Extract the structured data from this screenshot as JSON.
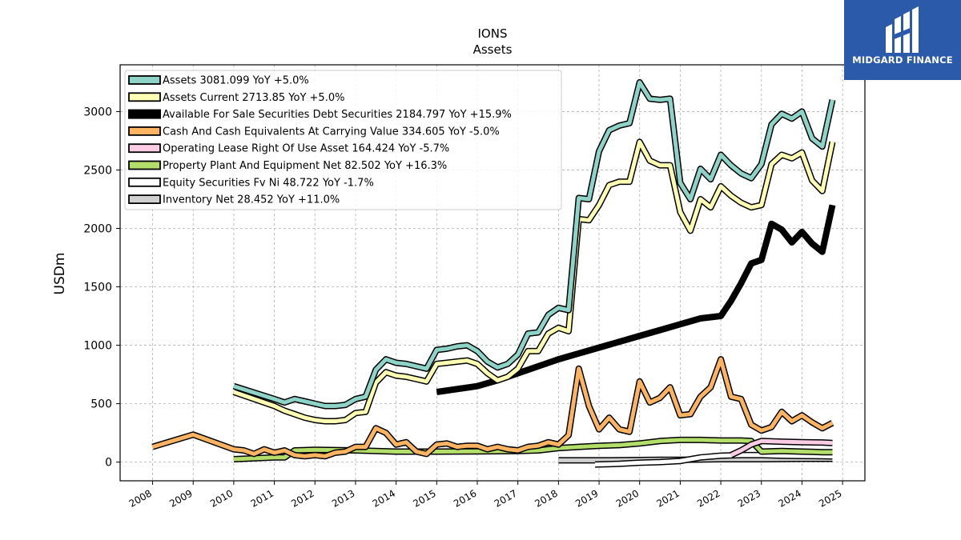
{
  "logo": {
    "text": "MIDGARD FINANCE"
  },
  "chart_data": {
    "type": "line",
    "title": "IONS",
    "subtitle": "Assets",
    "ylabel": "USDm",
    "xlabel": "",
    "xlim": [
      2007.2,
      2025.55
    ],
    "ylim": [
      -160,
      3400
    ],
    "grid": true,
    "legend_placement": "top-left",
    "x_ticks": [
      2008,
      2009,
      2010,
      2011,
      2012,
      2013,
      2014,
      2015,
      2016,
      2017,
      2018,
      2019,
      2020,
      2021,
      2022,
      2023,
      2024,
      2025
    ],
    "x_tick_labels": [
      "2008",
      "2009",
      "2010",
      "2011",
      "2012",
      "2013",
      "2014",
      "2015",
      "2016",
      "2017",
      "2018",
      "2019",
      "2020",
      "2021",
      "2022",
      "2023",
      "2024",
      "2025"
    ],
    "y_ticks": [
      0,
      500,
      1000,
      1500,
      2000,
      2500,
      3000
    ],
    "y_tick_labels": [
      "0",
      "500",
      "1000",
      "1500",
      "2000",
      "2500",
      "3000"
    ],
    "series": [
      {
        "name": "Assets",
        "legend": "Assets  3081.099 YoY +5.0%",
        "color": "#8dd3c7",
        "x": [
          2010,
          2011,
          2011.25,
          2011.5,
          2011.75,
          2012,
          2012.25,
          2012.5,
          2012.75,
          2013,
          2013.25,
          2013.5,
          2013.75,
          2014,
          2014.25,
          2014.5,
          2014.75,
          2015,
          2015.25,
          2015.5,
          2015.75,
          2016,
          2016.25,
          2016.5,
          2016.75,
          2017,
          2017.25,
          2017.5,
          2017.75,
          2018,
          2018.25,
          2018.5,
          2018.75,
          2019,
          2019.25,
          2019.5,
          2019.75,
          2020,
          2020.25,
          2020.5,
          2020.75,
          2021,
          2021.25,
          2021.5,
          2021.75,
          2022,
          2022.25,
          2022.5,
          2022.75,
          2023,
          2023.25,
          2023.5,
          2023.75,
          2024,
          2024.25,
          2024.5,
          2024.75
        ],
        "y": [
          650,
          540,
          510,
          540,
          520,
          500,
          480,
          480,
          490,
          540,
          560,
          790,
          880,
          850,
          840,
          820,
          800,
          960,
          970,
          990,
          1000,
          950,
          860,
          810,
          840,
          920,
          1100,
          1110,
          1260,
          1320,
          1300,
          2260,
          2250,
          2660,
          2840,
          2880,
          2900,
          3250,
          3110,
          3100,
          3110,
          2390,
          2250,
          2510,
          2420,
          2630,
          2540,
          2470,
          2430,
          2550,
          2890,
          2980,
          2940,
          3000,
          2770,
          2700,
          3100
        ]
      },
      {
        "name": "Assets Current",
        "legend": "Assets Current  2713.85 YoY +5.0%",
        "color": "#ffffb3",
        "x": [
          2010,
          2011,
          2011.25,
          2011.5,
          2011.75,
          2012,
          2012.25,
          2012.5,
          2012.75,
          2013,
          2013.25,
          2013.5,
          2013.75,
          2014,
          2014.25,
          2014.5,
          2014.75,
          2015,
          2015.25,
          2015.5,
          2015.75,
          2016,
          2016.25,
          2016.5,
          2016.75,
          2017,
          2017.25,
          2017.5,
          2017.75,
          2018,
          2018.25,
          2018.5,
          2018.75,
          2019,
          2019.25,
          2019.5,
          2019.75,
          2020,
          2020.25,
          2020.5,
          2020.75,
          2021,
          2021.25,
          2021.5,
          2021.75,
          2022,
          2022.25,
          2022.5,
          2022.75,
          2023,
          2023.25,
          2023.5,
          2023.75,
          2024,
          2024.25,
          2024.5,
          2024.75
        ],
        "y": [
          600,
          480,
          440,
          410,
          380,
          360,
          350,
          350,
          360,
          420,
          430,
          680,
          770,
          740,
          730,
          710,
          690,
          840,
          850,
          860,
          870,
          840,
          760,
          700,
          730,
          800,
          950,
          950,
          1100,
          1150,
          1120,
          2080,
          2070,
          2200,
          2370,
          2400,
          2400,
          2740,
          2580,
          2540,
          2540,
          2140,
          1980,
          2250,
          2180,
          2360,
          2280,
          2220,
          2180,
          2200,
          2550,
          2630,
          2600,
          2650,
          2410,
          2320,
          2740
        ]
      },
      {
        "name": "Available For Sale Securities Debt Securities",
        "legend": "Available For Sale Securities Debt Securities  2184.797 YoY +15.9%",
        "color": "#000000",
        "x": [
          2015,
          2016,
          2016.5,
          2017,
          2017.5,
          2018,
          2018.5,
          2019,
          2019.5,
          2020,
          2020.5,
          2021,
          2021.5,
          2022,
          2022.25,
          2022.5,
          2022.75,
          2023,
          2023.25,
          2023.5,
          2023.75,
          2024,
          2024.25,
          2024.5,
          2024.75
        ],
        "y": [
          600,
          650,
          700,
          760,
          820,
          880,
          930,
          980,
          1030,
          1080,
          1130,
          1180,
          1230,
          1250,
          1380,
          1530,
          1700,
          1730,
          2040,
          1990,
          1880,
          1970,
          1870,
          1800,
          2200
        ]
      },
      {
        "name": "Cash And Cash Equivalents At Carrying Value",
        "legend": "Cash And Cash Equivalents At Carrying Value  334.605 YoY -5.0%",
        "color": "#fdb462",
        "x": [
          2008,
          2009,
          2010,
          2010.25,
          2010.5,
          2010.75,
          2011,
          2011.25,
          2011.5,
          2011.75,
          2012,
          2012.25,
          2012.5,
          2012.75,
          2013,
          2013.25,
          2013.5,
          2013.75,
          2014,
          2014.25,
          2014.5,
          2014.75,
          2015,
          2015.25,
          2015.5,
          2015.75,
          2016,
          2016.25,
          2016.5,
          2016.75,
          2017,
          2017.25,
          2017.5,
          2017.75,
          2018,
          2018.25,
          2018.5,
          2018.75,
          2019,
          2019.25,
          2019.5,
          2019.75,
          2020,
          2020.25,
          2020.5,
          2020.75,
          2021,
          2021.25,
          2021.5,
          2021.75,
          2022,
          2022.25,
          2022.5,
          2022.75,
          2023,
          2023.25,
          2023.5,
          2023.75,
          2024,
          2024.25,
          2024.5,
          2024.75
        ],
        "y": [
          130,
          235,
          110,
          100,
          70,
          110,
          80,
          100,
          60,
          50,
          60,
          50,
          80,
          90,
          130,
          130,
          290,
          250,
          150,
          170,
          90,
          70,
          150,
          160,
          130,
          140,
          140,
          110,
          130,
          110,
          100,
          130,
          140,
          170,
          150,
          230,
          800,
          480,
          280,
          380,
          280,
          260,
          690,
          510,
          550,
          640,
          400,
          410,
          560,
          640,
          880,
          560,
          540,
          320,
          270,
          300,
          430,
          350,
          400,
          340,
          290,
          335
        ]
      },
      {
        "name": "Operating Lease Right Of Use Asset",
        "legend": "Operating Lease Right Of Use Asset  164.424 YoY -5.7%",
        "color": "#fccde5",
        "x": [
          2022.25,
          2022.5,
          2022.75,
          2023,
          2023.5,
          2024,
          2024.5,
          2024.75
        ],
        "y": [
          60,
          100,
          150,
          180,
          175,
          170,
          168,
          164
        ]
      },
      {
        "name": "Property Plant And Equipment Net",
        "legend": "Property Plant And Equipment Net  82.502 YoY +16.3%",
        "color": "#b3de69",
        "x": [
          2010,
          2011,
          2011.25,
          2011.5,
          2012,
          2013,
          2014,
          2015,
          2016,
          2017,
          2017.5,
          2018,
          2018.5,
          2019,
          2019.5,
          2020,
          2020.5,
          2021,
          2021.5,
          2022,
          2022.5,
          2022.75,
          2023,
          2023.5,
          2024,
          2024.5,
          2024.75
        ],
        "y": [
          25,
          40,
          40,
          100,
          105,
          100,
          90,
          90,
          92,
          95,
          100,
          120,
          130,
          140,
          145,
          160,
          180,
          190,
          190,
          185,
          185,
          180,
          90,
          95,
          90,
          85,
          85
        ]
      },
      {
        "name": "Equity Securities Fv Ni",
        "legend": "Equity Securities Fv Ni  48.722 YoY -1.7%",
        "color": "#ffffff",
        "x": [
          2018.9,
          2019.5,
          2020,
          2020.5,
          2021,
          2021.5,
          2022,
          2022.5,
          2023,
          2023.5,
          2024,
          2024.5,
          2024.75
        ],
        "y": [
          -20,
          -15,
          -5,
          0,
          10,
          40,
          55,
          60,
          60,
          55,
          52,
          50,
          49
        ]
      },
      {
        "name": "Inventory Net",
        "legend": "Inventory Net  28.452 YoY +11.0%",
        "color": "#d0d0d0",
        "x": [
          2018,
          2018.5,
          2019,
          2019.5,
          2020,
          2020.5,
          2021,
          2021.5,
          2022,
          2022.5,
          2023,
          2023.5,
          2024,
          2024.5,
          2024.75
        ],
        "y": [
          15,
          15,
          15,
          16,
          18,
          20,
          20,
          22,
          25,
          25,
          25,
          27,
          28,
          28,
          28
        ]
      }
    ]
  }
}
